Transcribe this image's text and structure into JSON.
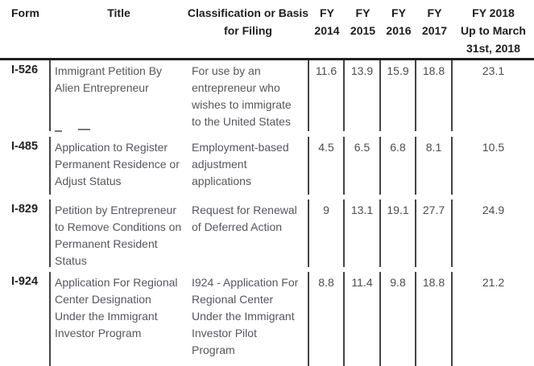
{
  "header": {
    "form": "Form",
    "title": "Title",
    "classification": "Classification or Basis\nfor Filing",
    "fy2014": "FY\n2014",
    "fy2015": "FY\n2015",
    "fy2016": "FY\n2016",
    "fy2017": "FY\n2017",
    "fy2018": "FY 2018\nUp to March\n31st, 2018"
  },
  "rows": [
    {
      "form": "I-526",
      "title": "Immigrant Petition By\nAlien Entrepreneur",
      "classification": "For use by an\nentrepreneur who\nwishes to immigrate\nto the United States",
      "fy2014": "11.6",
      "fy2015": "13.9",
      "fy2016": "15.9",
      "fy2017": "18.8",
      "fy2018": "23.1"
    },
    {
      "form": "I-485",
      "title": "Application to Register\nPermanent Residence or\nAdjust Status",
      "classification": "Employment-based\nadjustment\napplications",
      "fy2014": "4.5",
      "fy2015": "6.5",
      "fy2016": "6.8",
      "fy2017": "8.1",
      "fy2018": "10.5"
    },
    {
      "form": "I-829",
      "title": "Petition by Entrepreneur\nto Remove Conditions on\nPermanent Resident\nStatus",
      "classification": "Request for Renewal\nof Deferred Action",
      "fy2014": "9",
      "fy2015": "13.1",
      "fy2016": "19.1",
      "fy2017": "27.7",
      "fy2018": "24.9"
    },
    {
      "form": "I-924",
      "title": "Application For Regional\nCenter Designation\nUnder the Immigrant\nInvestor Program",
      "classification": "I924 - Application For\nRegional Center\nUnder the Immigrant\nInvestor Pilot\nProgram",
      "fy2014": "8.8",
      "fy2015": "11.4",
      "fy2016": "9.8",
      "fy2017": "18.8",
      "fy2018": "21.2"
    }
  ],
  "colors": {
    "background": "#ffffff",
    "header_text": "#1d1d1f",
    "header_rule": "#202022",
    "form_code_text": "#232325",
    "body_text": "#56575b",
    "number_text": "#4b4c4f",
    "divider": "#434446"
  },
  "chart_data": {
    "type": "table",
    "title": "USCIS form processing times by fiscal year",
    "columns": [
      "Form",
      "Title",
      "Classification or Basis for Filing",
      "FY 2014",
      "FY 2015",
      "FY 2016",
      "FY 2017",
      "FY 2018 Up to March 31st, 2018"
    ],
    "rows": [
      [
        "I-526",
        "Immigrant Petition By Alien Entrepreneur",
        "For use by an entrepreneur who wishes to immigrate to the United States",
        11.6,
        13.9,
        15.9,
        18.8,
        23.1
      ],
      [
        "I-485",
        "Application to Register Permanent Residence or Adjust Status",
        "Employment-based adjustment applications",
        4.5,
        6.5,
        6.8,
        8.1,
        10.5
      ],
      [
        "I-829",
        "Petition by Entrepreneur to Remove Conditions on Permanent Resident Status",
        "Request for Renewal of Deferred Action",
        9,
        13.1,
        19.1,
        27.7,
        24.9
      ],
      [
        "I-924",
        "Application For Regional Center Designation Under the Immigrant Investor Program",
        "I924 - Application For Regional Center Under the Immigrant Investor Pilot Program",
        8.8,
        11.4,
        9.8,
        18.8,
        21.2
      ]
    ],
    "layout": {
      "header_separator": "thick black rule",
      "column_dividers": "vertical lines in body rows only, none between Title and Classification",
      "row_separators": "white gaps, no horizontal lines"
    }
  }
}
